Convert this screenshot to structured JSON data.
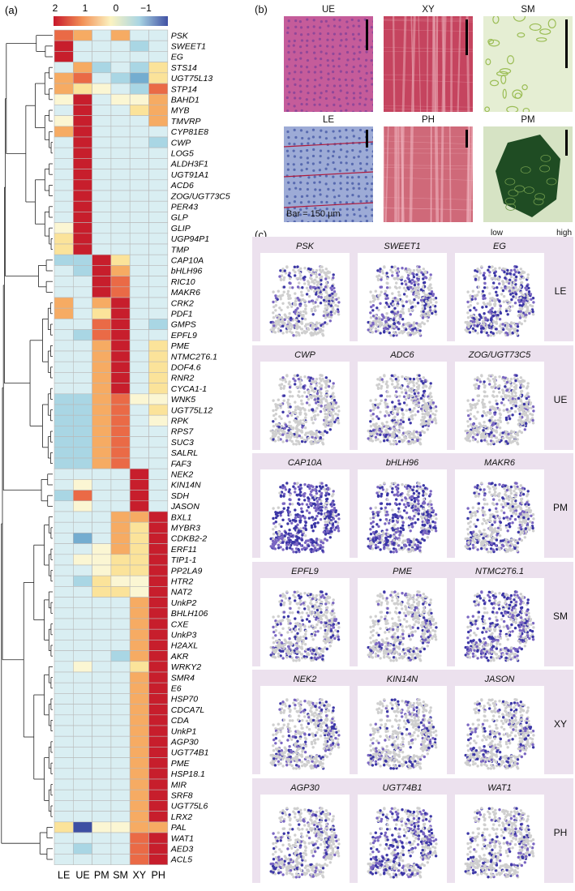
{
  "panel_labels": {
    "a": "(a)",
    "b": "(b)",
    "c": "(c)"
  },
  "colorbar": {
    "ticks": [
      "2",
      "1",
      "0",
      "−1"
    ],
    "colors": [
      "#c8182b",
      "#f29056",
      "#fbf3c1",
      "#a9d5e3",
      "#4151a4"
    ]
  },
  "heatmap_colors": {
    "2": "#c71e2c",
    "1.5": "#ea6a46",
    "1": "#f6ab63",
    "0.5": "#fbe39a",
    "0": "#fbf6d3",
    "-0.5": "#d9eef2",
    "-1": "#a9d6e4",
    "-1.5": "#74add0",
    "-2": "#3e4fa3"
  },
  "chart_data": {
    "type": "heatmap",
    "columns": [
      "LE",
      "UE",
      "PM",
      "SM",
      "XY",
      "PH"
    ],
    "rows": [
      "PSK",
      "SWEET1",
      "EG",
      "STS14",
      "UGT75L13",
      "STP14",
      "BAHD1",
      "MYB",
      "TMVRP",
      "CYP81E8",
      "CWP",
      "LOG5",
      "ALDH3F1",
      "UGT91A1",
      "ACD6",
      "ZOG/UGT73C5",
      "PER43",
      "GLP",
      "GLIP",
      "UGP94P1",
      "TMP",
      "CAP10A",
      "bHLH96",
      "RIC10",
      "MAKR6",
      "CRK2",
      "PDF1",
      "GMPS",
      "EPFL9",
      "PME",
      "NTMC2T6.1",
      "DOF4.6",
      "RNR2",
      "CYCA1-1",
      "WNK5",
      "UGT75L12",
      "RPK",
      "RPS7",
      "SUC3",
      "SALRL",
      "FAF3",
      "NEK2",
      "KIN14N",
      "SDH",
      "JASON",
      "BXL1",
      "MYBR3",
      "CDKB2-2",
      "ERF11",
      "TIP1-1",
      "PP2LA9",
      "HTR2",
      "NAT2",
      "UnkP2",
      "BHLH106",
      "CXE",
      "UnkP3",
      "H2AXL",
      "AKR",
      "WRKY2",
      "SMR4",
      "E6",
      "HSP70",
      "CDCA7L",
      "CDA",
      "UnkP1",
      "AGP30",
      "UGT74B1",
      "PME",
      "HSP18.1",
      "MIR",
      "SRF8",
      "UGT75L6",
      "LRX2",
      "PAL",
      "WAT1",
      "AED3",
      "ACL5"
    ],
    "values": [
      [
        1.5,
        1,
        -0.5,
        1,
        -0.5,
        -0.5
      ],
      [
        2,
        -0.5,
        -0.5,
        -0.5,
        -1,
        -0.5
      ],
      [
        2,
        -0.5,
        -0.5,
        -0.5,
        -0.5,
        -0.5
      ],
      [
        -0.5,
        1,
        -1,
        -0.5,
        -1,
        0.5
      ],
      [
        1,
        1.5,
        -0.5,
        -1,
        -1.5,
        0.5
      ],
      [
        1,
        0.5,
        0,
        -0.5,
        -1,
        1.5
      ],
      [
        0,
        2,
        -0.5,
        0,
        0,
        1
      ],
      [
        -0.5,
        2,
        -0.5,
        -0.5,
        0.5,
        1
      ],
      [
        0,
        2,
        -0.5,
        -0.5,
        -0.5,
        1
      ],
      [
        1,
        2,
        -0.5,
        -0.5,
        -0.5,
        -0.5
      ],
      [
        -0.5,
        2,
        -0.5,
        -0.5,
        -0.5,
        -1
      ],
      [
        -0.5,
        2,
        -0.5,
        -0.5,
        -0.5,
        -0.5
      ],
      [
        -0.5,
        2,
        -0.5,
        -0.5,
        -0.5,
        -0.5
      ],
      [
        -0.5,
        2,
        -0.5,
        -0.5,
        -0.5,
        -0.5
      ],
      [
        -0.5,
        2,
        -0.5,
        -0.5,
        -0.5,
        -0.5
      ],
      [
        -0.5,
        2,
        -0.5,
        -0.5,
        -0.5,
        -0.5
      ],
      [
        -0.5,
        2,
        -0.5,
        -0.5,
        -0.5,
        -0.5
      ],
      [
        -0.5,
        2,
        -0.5,
        -0.5,
        -0.5,
        -0.5
      ],
      [
        0,
        2,
        -0.5,
        -0.5,
        -0.5,
        -0.5
      ],
      [
        0.5,
        2,
        -0.5,
        -0.5,
        -0.5,
        -0.5
      ],
      [
        0.5,
        2,
        -0.5,
        -0.5,
        -0.5,
        -0.5
      ],
      [
        -1,
        -1,
        2,
        0.5,
        -0.5,
        -0.5
      ],
      [
        -0.5,
        -1,
        2,
        1,
        -0.5,
        -0.5
      ],
      [
        -0.5,
        -0.5,
        2,
        1.5,
        -0.5,
        -0.5
      ],
      [
        -0.5,
        -0.5,
        2,
        1.5,
        -0.5,
        -0.5
      ],
      [
        1,
        -0.5,
        1,
        2,
        -0.5,
        -0.5
      ],
      [
        1,
        -0.5,
        0.5,
        2,
        -0.5,
        -0.5
      ],
      [
        -0.5,
        -0.5,
        1.5,
        2,
        -0.5,
        -1
      ],
      [
        -0.5,
        -1,
        1.5,
        2,
        -0.5,
        -0.5
      ],
      [
        -0.5,
        -0.5,
        1,
        2,
        -0.5,
        0.5
      ],
      [
        -0.5,
        -0.5,
        1,
        2,
        -0.5,
        0.5
      ],
      [
        -0.5,
        -0.5,
        1,
        2,
        -0.5,
        0.5
      ],
      [
        -0.5,
        -0.5,
        1,
        2,
        -0.5,
        0.5
      ],
      [
        -0.5,
        -0.5,
        1,
        2,
        -0.5,
        0.5
      ],
      [
        -1,
        -1,
        1,
        1.5,
        0,
        0
      ],
      [
        -1,
        -1,
        1,
        1.5,
        -0.5,
        0.5
      ],
      [
        -1,
        -1,
        1,
        1.5,
        -0.5,
        0
      ],
      [
        -1,
        -1,
        1,
        1.5,
        -0.5,
        -0.5
      ],
      [
        -1,
        -1,
        1,
        1.5,
        -0.5,
        -0.5
      ],
      [
        -1,
        -1,
        1,
        1.5,
        -0.5,
        -0.5
      ],
      [
        -1,
        -1,
        1,
        1.5,
        -0.5,
        -0.5
      ],
      [
        -0.5,
        -0.5,
        -0.5,
        -0.5,
        2,
        -0.5
      ],
      [
        -0.5,
        0,
        -0.5,
        -0.5,
        2,
        -0.5
      ],
      [
        -1,
        1.5,
        -0.5,
        -0.5,
        2,
        -0.5
      ],
      [
        -0.5,
        0,
        -0.5,
        -0.5,
        2,
        -0.5
      ],
      [
        -0.5,
        -0.5,
        -0.5,
        1,
        1,
        2
      ],
      [
        -0.5,
        -0.5,
        -0.5,
        1,
        0.5,
        2
      ],
      [
        -0.5,
        -1.5,
        -0.5,
        1,
        0.5,
        2
      ],
      [
        -0.5,
        -0.5,
        0,
        1,
        0.5,
        2
      ],
      [
        -0.5,
        0,
        0,
        0.5,
        0.5,
        2
      ],
      [
        -0.5,
        -0.5,
        0,
        0.5,
        0.5,
        2
      ],
      [
        -0.5,
        -1,
        0.5,
        0,
        0,
        2
      ],
      [
        -0.5,
        -0.5,
        0.5,
        0.5,
        0,
        2
      ],
      [
        -0.5,
        -0.5,
        -0.5,
        -0.5,
        1,
        2
      ],
      [
        -0.5,
        -0.5,
        -0.5,
        -0.5,
        1,
        2
      ],
      [
        -0.5,
        -0.5,
        -0.5,
        -0.5,
        1,
        2
      ],
      [
        -0.5,
        -0.5,
        -0.5,
        -0.5,
        1,
        2
      ],
      [
        -0.5,
        -0.5,
        -0.5,
        -0.5,
        1,
        2
      ],
      [
        -0.5,
        -0.5,
        -0.5,
        -1,
        1,
        2
      ],
      [
        -0.5,
        0,
        -0.5,
        -0.5,
        0.5,
        2
      ],
      [
        -0.5,
        -0.5,
        -0.5,
        -0.5,
        1,
        2
      ],
      [
        -0.5,
        -0.5,
        -0.5,
        -0.5,
        1,
        2
      ],
      [
        -0.5,
        -0.5,
        -0.5,
        -0.5,
        1,
        2
      ],
      [
        -0.5,
        -0.5,
        -0.5,
        -0.5,
        1,
        2
      ],
      [
        -0.5,
        -0.5,
        -0.5,
        -0.5,
        1,
        2
      ],
      [
        -0.5,
        -0.5,
        -0.5,
        -0.5,
        1,
        2
      ],
      [
        -0.5,
        -0.5,
        -0.5,
        -0.5,
        1,
        2
      ],
      [
        -0.5,
        -0.5,
        -0.5,
        -0.5,
        1,
        2
      ],
      [
        -0.5,
        -0.5,
        -0.5,
        -0.5,
        1,
        2
      ],
      [
        -0.5,
        -0.5,
        -0.5,
        -0.5,
        1,
        2
      ],
      [
        -0.5,
        -0.5,
        -0.5,
        -0.5,
        1,
        2
      ],
      [
        -0.5,
        -0.5,
        -0.5,
        -0.5,
        1,
        2
      ],
      [
        -0.5,
        -0.5,
        -0.5,
        -0.5,
        1,
        2
      ],
      [
        -0.5,
        -0.5,
        -0.5,
        -0.5,
        1,
        2
      ],
      [
        0.5,
        -2,
        0,
        0,
        1,
        1
      ],
      [
        -0.5,
        -0.5,
        -0.5,
        -0.5,
        1.5,
        2
      ],
      [
        -0.5,
        -1,
        -0.5,
        -0.5,
        1.5,
        2
      ],
      [
        -0.5,
        -0.5,
        -0.5,
        -0.5,
        1.5,
        2
      ]
    ]
  },
  "micrographs": {
    "scale_label": "Bar = 150 µm",
    "panels": [
      {
        "label": "UE",
        "bg": "#c55c9a",
        "dot": "#7b3f98"
      },
      {
        "label": "XY",
        "bg": "#c5445f",
        "dot": "#e7a4b0"
      },
      {
        "label": "SM",
        "bg": "#e5eed3",
        "dot": "#9bbd55"
      },
      {
        "label": "LE",
        "bg": "#9dabd6",
        "dot": "#3a4f9f"
      },
      {
        "label": "PH",
        "bg": "#cf6979",
        "dot": "#f1b5c0"
      },
      {
        "label": "PM",
        "bg": "#d6e3c4",
        "dot": "#1f4c23"
      }
    ]
  },
  "tsne": {
    "legend": {
      "low": "low",
      "high": "high"
    },
    "rows": [
      {
        "tissue": "LE",
        "genes": [
          "PSK",
          "SWEET1",
          "EG"
        ]
      },
      {
        "tissue": "UE",
        "genes": [
          "CWP",
          "ADC6",
          "ZOG/UGT73C5"
        ]
      },
      {
        "tissue": "PM",
        "genes": [
          "CAP10A",
          "bHLH96",
          "MAKR6"
        ]
      },
      {
        "tissue": "SM",
        "genes": [
          "EPFL9",
          "PME",
          "NTMC2T6.1"
        ]
      },
      {
        "tissue": "XY",
        "genes": [
          "NEK2",
          "KIN14N",
          "JASON"
        ]
      },
      {
        "tissue": "PH",
        "genes": [
          "AGP30",
          "UGT74B1",
          "WAT1"
        ]
      }
    ]
  }
}
